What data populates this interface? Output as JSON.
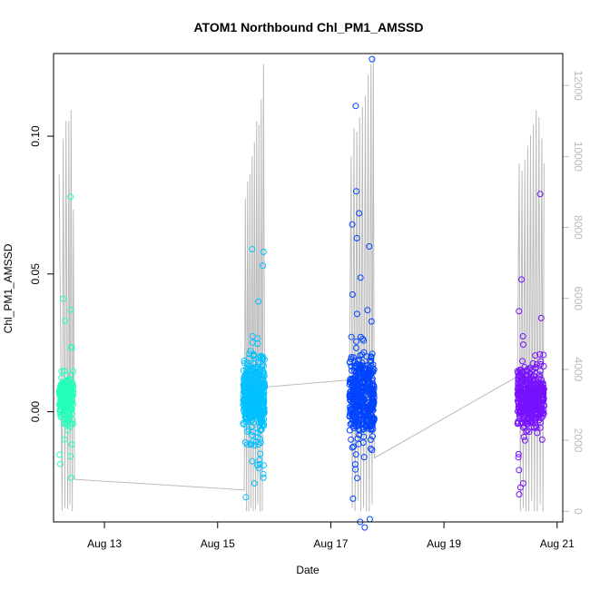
{
  "chart_data": {
    "type": "scatter",
    "title": "ATOM1 Northbound Chl_PM1_AMSSD",
    "xlabel": "Date",
    "ylabel": "Chl_PM1_AMSSD",
    "x_unit": "days in August",
    "xlim": [
      12.1,
      21.1
    ],
    "ylim": [
      -0.04,
      0.13
    ],
    "y2lim": [
      -300,
      12900
    ],
    "x_ticks": [
      13,
      15,
      17,
      19,
      21
    ],
    "x_tick_labels": [
      "Aug 13",
      "Aug 15",
      "Aug 17",
      "Aug 19",
      "Aug 21"
    ],
    "y_ticks": [
      0.0,
      0.05,
      0.1
    ],
    "y_tick_labels": [
      "0.00",
      "0.05",
      "0.10"
    ],
    "y2_ticks": [
      0,
      2000,
      4000,
      6000,
      8000,
      10000,
      12000
    ],
    "y2_tick_labels": [
      "0",
      "2000",
      "4000",
      "6000",
      "8000",
      "10000",
      "12000"
    ],
    "grid": false,
    "legend": "none",
    "series": [
      {
        "color": "#22ffbb",
        "x_range": [
          12.2,
          12.45
        ],
        "core_mean": 0.005,
        "core_spread": 0.007,
        "highlights": [
          {
            "x": 12.4,
            "y": 0.078
          },
          {
            "x": 12.27,
            "y": 0.041
          },
          {
            "x": 12.4,
            "y": 0.037
          },
          {
            "x": 12.3,
            "y": 0.033
          },
          {
            "x": 12.22,
            "y": -0.019
          },
          {
            "x": 12.41,
            "y": -0.024
          }
        ]
      },
      {
        "color": "#00c0ff",
        "x_range": [
          15.45,
          15.83
        ],
        "core_mean": 0.005,
        "core_spread": 0.011,
        "highlights": [
          {
            "x": 15.61,
            "y": 0.059
          },
          {
            "x": 15.81,
            "y": 0.058
          },
          {
            "x": 15.8,
            "y": 0.053
          },
          {
            "x": 15.72,
            "y": 0.04
          },
          {
            "x": 15.5,
            "y": -0.031
          },
          {
            "x": 15.65,
            "y": -0.026
          }
        ]
      },
      {
        "color": "#0044ff",
        "x_range": [
          17.33,
          17.77
        ],
        "core_mean": 0.006,
        "core_spread": 0.012,
        "highlights": [
          {
            "x": 17.73,
            "y": 0.128
          },
          {
            "x": 17.44,
            "y": 0.111
          },
          {
            "x": 17.45,
            "y": 0.08
          },
          {
            "x": 17.5,
            "y": 0.072
          },
          {
            "x": 17.38,
            "y": 0.068
          },
          {
            "x": 17.46,
            "y": 0.063
          },
          {
            "x": 17.68,
            "y": 0.06
          },
          {
            "x": 17.69,
            "y": -0.039
          },
          {
            "x": 17.52,
            "y": -0.04
          },
          {
            "x": 17.6,
            "y": -0.042
          }
        ]
      },
      {
        "color": "#7711ff",
        "x_range": [
          20.3,
          20.77
        ],
        "core_mean": 0.005,
        "core_spread": 0.009,
        "highlights": [
          {
            "x": 20.7,
            "y": 0.079
          },
          {
            "x": 20.37,
            "y": 0.048
          },
          {
            "x": 20.72,
            "y": 0.034
          },
          {
            "x": 20.33,
            "y": -0.03
          },
          {
            "x": 20.4,
            "y": -0.026
          }
        ]
      }
    ],
    "secondary_line": {
      "color": "#bbbbbb",
      "axis": "right",
      "points": [
        [
          12.2,
          9500
        ],
        [
          12.25,
          0
        ],
        [
          12.27,
          10500
        ],
        [
          12.3,
          100
        ],
        [
          12.32,
          11000
        ],
        [
          12.35,
          50
        ],
        [
          12.37,
          11000
        ],
        [
          12.39,
          200
        ],
        [
          12.41,
          11300
        ],
        [
          12.43,
          0
        ],
        [
          12.45,
          8500
        ],
        [
          12.47,
          900
        ],
        [
          15.47,
          600
        ],
        [
          15.49,
          8800
        ],
        [
          15.51,
          0
        ],
        [
          15.53,
          9300
        ],
        [
          15.55,
          0
        ],
        [
          15.57,
          9500
        ],
        [
          15.59,
          100
        ],
        [
          15.61,
          10000
        ],
        [
          15.63,
          0
        ],
        [
          15.65,
          10400
        ],
        [
          15.67,
          50
        ],
        [
          15.69,
          11000
        ],
        [
          15.71,
          200
        ],
        [
          15.73,
          10900
        ],
        [
          15.75,
          0
        ],
        [
          15.77,
          11600
        ],
        [
          15.79,
          0
        ],
        [
          15.81,
          12600
        ],
        [
          15.83,
          3500
        ],
        [
          17.33,
          3700
        ],
        [
          17.36,
          10000
        ],
        [
          17.38,
          100
        ],
        [
          17.41,
          10800
        ],
        [
          17.43,
          0
        ],
        [
          17.46,
          10700
        ],
        [
          17.48,
          300
        ],
        [
          17.51,
          11100
        ],
        [
          17.53,
          0
        ],
        [
          17.56,
          11400
        ],
        [
          17.58,
          100
        ],
        [
          17.61,
          11700
        ],
        [
          17.63,
          0
        ],
        [
          17.66,
          12300
        ],
        [
          17.68,
          0
        ],
        [
          17.71,
          12600
        ],
        [
          17.73,
          200
        ],
        [
          17.75,
          12800
        ],
        [
          17.77,
          1500
        ],
        [
          20.3,
          3800
        ],
        [
          20.33,
          9800
        ],
        [
          20.35,
          0
        ],
        [
          20.38,
          9600
        ],
        [
          20.4,
          100
        ],
        [
          20.43,
          9900
        ],
        [
          20.45,
          0
        ],
        [
          20.48,
          10300
        ],
        [
          20.5,
          0
        ],
        [
          20.53,
          10600
        ],
        [
          20.55,
          300
        ],
        [
          20.58,
          10900
        ],
        [
          20.6,
          0
        ],
        [
          20.63,
          11300
        ],
        [
          20.65,
          0
        ],
        [
          20.68,
          11100
        ],
        [
          20.7,
          200
        ],
        [
          20.73,
          10500
        ],
        [
          20.75,
          0
        ],
        [
          20.77,
          9800
        ]
      ]
    }
  }
}
